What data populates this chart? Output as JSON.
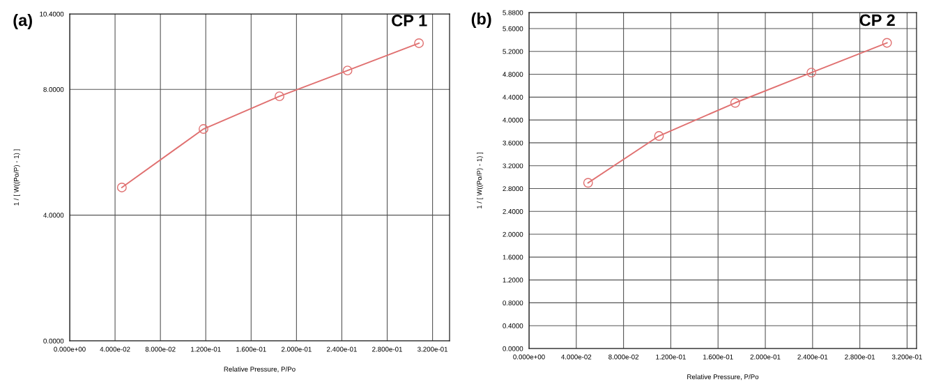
{
  "chart_data": [
    {
      "type": "line",
      "title": "(a)",
      "xlabel": "Relative Pressure, P/Po",
      "ylabel": "1 / [ W((Po/P) - 1) ]",
      "series": [
        {
          "name": "CP 1",
          "color": "#e07070",
          "x": [
            0.046,
            0.118,
            0.185,
            0.245,
            0.308
          ],
          "values": [
            4.88,
            6.74,
            7.78,
            8.6,
            9.47
          ]
        }
      ],
      "xlim": [
        0,
        0.335
      ],
      "ylim": [
        0,
        10.4
      ],
      "xticks": [
        {
          "value": 0,
          "label": "0.000e+00"
        },
        {
          "value": 0.04,
          "label": "4.000e-02"
        },
        {
          "value": 0.08,
          "label": "8.000e-02"
        },
        {
          "value": 0.12,
          "label": "1.200e-01"
        },
        {
          "value": 0.16,
          "label": "1.600e-01"
        },
        {
          "value": 0.2,
          "label": "2.000e-01"
        },
        {
          "value": 0.24,
          "label": "2.400e-01"
        },
        {
          "value": 0.28,
          "label": "2.800e-01"
        },
        {
          "value": 0.32,
          "label": "3.200e-01"
        }
      ],
      "yticks": [
        {
          "value": 0,
          "label": "0.0000"
        },
        {
          "value": 4,
          "label": "4.0000"
        },
        {
          "value": 8,
          "label": "8.0000"
        },
        {
          "value": 10.4,
          "label": "10.4000"
        }
      ],
      "grid": true,
      "marker": "circle",
      "line_style": "solid"
    },
    {
      "type": "line",
      "title": "(b)",
      "xlabel": "Relative Pressure, P/Po",
      "ylabel": "1 / [ W((Po/P) - 1) ]",
      "series": [
        {
          "name": "CP 2",
          "color": "#e07070",
          "x": [
            0.05,
            0.11,
            0.1745,
            0.239,
            0.303
          ],
          "values": [
            2.9,
            3.72,
            4.3,
            4.83,
            5.35
          ]
        }
      ],
      "xlim": [
        0,
        0.328
      ],
      "ylim": [
        0,
        5.88
      ],
      "xticks": [
        {
          "value": 0,
          "label": "0.000e+00"
        },
        {
          "value": 0.04,
          "label": "4.000e-02"
        },
        {
          "value": 0.08,
          "label": "8.000e-02"
        },
        {
          "value": 0.12,
          "label": "1.200e-01"
        },
        {
          "value": 0.16,
          "label": "1.600e-01"
        },
        {
          "value": 0.2,
          "label": "2.000e-01"
        },
        {
          "value": 0.24,
          "label": "2.400e-01"
        },
        {
          "value": 0.28,
          "label": "2.800e-01"
        },
        {
          "value": 0.32,
          "label": "3.200e-01"
        }
      ],
      "yticks": [
        {
          "value": 0,
          "label": "0.0000"
        },
        {
          "value": 0.4,
          "label": "0.4000"
        },
        {
          "value": 0.8,
          "label": "0.8000"
        },
        {
          "value": 1.2,
          "label": "1.2000"
        },
        {
          "value": 1.6,
          "label": "1.6000"
        },
        {
          "value": 2.0,
          "label": "2.0000"
        },
        {
          "value": 2.4,
          "label": "2.4000"
        },
        {
          "value": 2.8,
          "label": "2.8000"
        },
        {
          "value": 3.2,
          "label": "3.2000"
        },
        {
          "value": 3.6,
          "label": "3.6000"
        },
        {
          "value": 4.0,
          "label": "4.0000"
        },
        {
          "value": 4.4,
          "label": "4.4000"
        },
        {
          "value": 4.8,
          "label": "4.8000"
        },
        {
          "value": 5.2,
          "label": "5.2000"
        },
        {
          "value": 5.6,
          "label": "5.6000"
        },
        {
          "value": 5.88,
          "label": "5.8800"
        }
      ],
      "grid": true,
      "marker": "circle",
      "line_style": "solid"
    }
  ]
}
